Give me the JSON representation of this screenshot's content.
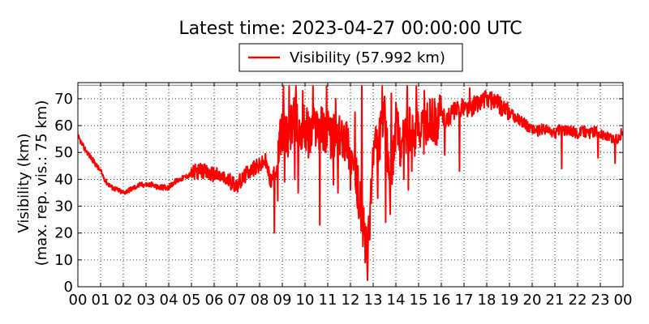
{
  "chart_data": {
    "type": "line",
    "title": "Latest time: 2023-04-27 00:00:00 UTC",
    "ylabel_line1": "Visibility (km)",
    "ylabel_line2": "(max. rep. vis.: 75 km)",
    "xlabel": "",
    "ylim": [
      0,
      76
    ],
    "xlim": [
      0,
      24
    ],
    "yticks": [
      0,
      10,
      20,
      30,
      40,
      50,
      60,
      70
    ],
    "xtick_labels": [
      "00",
      "01",
      "02",
      "03",
      "04",
      "05",
      "06",
      "07",
      "08",
      "09",
      "10",
      "11",
      "12",
      "13",
      "14",
      "15",
      "16",
      "17",
      "18",
      "19",
      "20",
      "21",
      "22",
      "23",
      "00"
    ],
    "max_reported_visibility": 75,
    "grid": true,
    "legend_position": "top-center",
    "series": [
      {
        "name": "Visibility (57.992 km)",
        "color": "#ff0000",
        "x": [
          0.0,
          0.25,
          0.5,
          0.75,
          1.0,
          1.25,
          1.5,
          1.75,
          2.0,
          2.25,
          2.5,
          2.75,
          3.0,
          3.25,
          3.5,
          3.75,
          4.0,
          4.25,
          4.5,
          4.75,
          5.0,
          5.25,
          5.5,
          5.75,
          6.0,
          6.25,
          6.5,
          6.75,
          7.0,
          7.25,
          7.5,
          7.75,
          8.0,
          8.25,
          8.5,
          8.75,
          9.0,
          9.25,
          9.5,
          9.75,
          10.0,
          10.25,
          10.5,
          10.75,
          11.0,
          11.25,
          11.5,
          11.75,
          12.0,
          12.25,
          12.5,
          12.75,
          13.0,
          13.25,
          13.5,
          13.75,
          14.0,
          14.25,
          14.5,
          14.75,
          15.0,
          15.25,
          15.5,
          15.75,
          16.0,
          16.25,
          16.5,
          16.75,
          17.0,
          17.25,
          17.5,
          17.75,
          18.0,
          18.25,
          18.5,
          18.75,
          19.0,
          19.25,
          19.5,
          19.75,
          20.0,
          20.25,
          20.5,
          20.75,
          21.0,
          21.25,
          21.5,
          21.75,
          22.0,
          22.25,
          22.5,
          22.75,
          23.0,
          23.25,
          23.5,
          23.75,
          24.0
        ],
        "y": [
          56,
          52,
          49,
          46,
          43,
          39,
          37,
          36,
          35,
          36,
          37,
          38,
          38,
          38,
          37,
          37,
          37,
          39,
          40,
          41,
          42,
          43,
          43,
          42,
          42,
          41,
          40,
          39,
          38,
          40,
          43,
          44,
          45,
          47,
          39,
          44,
          60,
          55,
          63,
          58,
          60,
          56,
          61,
          59,
          57,
          56,
          55,
          58,
          50,
          40,
          28,
          10,
          50,
          54,
          62,
          38,
          60,
          52,
          60,
          55,
          62,
          58,
          63,
          61,
          64,
          62,
          65,
          66,
          67,
          66,
          68,
          69,
          70,
          69,
          68,
          66,
          65,
          63,
          62,
          60,
          59,
          58,
          59,
          58,
          57,
          59,
          58,
          58,
          57,
          58,
          57,
          58,
          57,
          56,
          55,
          55,
          58
        ],
        "downspikes": [
          [
            8.65,
            20
          ],
          [
            8.8,
            32
          ],
          [
            9.1,
            39
          ],
          [
            9.55,
            40
          ],
          [
            9.7,
            35
          ],
          [
            10.15,
            48
          ],
          [
            10.35,
            35
          ],
          [
            10.65,
            23
          ],
          [
            11.25,
            38
          ],
          [
            11.45,
            35
          ],
          [
            11.75,
            47
          ],
          [
            12.0,
            36
          ],
          [
            12.15,
            46
          ],
          [
            12.35,
            28
          ],
          [
            12.55,
            15
          ],
          [
            12.65,
            9
          ],
          [
            12.9,
            40
          ],
          [
            13.2,
            33
          ],
          [
            13.55,
            24
          ],
          [
            13.75,
            27
          ],
          [
            14.35,
            40
          ],
          [
            14.55,
            36
          ],
          [
            14.7,
            43
          ],
          [
            14.9,
            39
          ],
          [
            16.15,
            49
          ],
          [
            16.8,
            43
          ],
          [
            21.3,
            44
          ],
          [
            22.9,
            48
          ],
          [
            23.65,
            46
          ]
        ],
        "upspikes": [
          [
            9.05,
            75
          ],
          [
            9.3,
            75
          ],
          [
            9.6,
            75
          ],
          [
            9.9,
            73
          ],
          [
            10.35,
            75
          ],
          [
            10.95,
            75
          ],
          [
            11.35,
            70
          ],
          [
            12.2,
            65
          ],
          [
            12.5,
            75
          ],
          [
            13.4,
            75
          ],
          [
            13.8,
            72
          ],
          [
            14.5,
            75
          ],
          [
            14.9,
            75
          ],
          [
            15.25,
            73
          ],
          [
            15.6,
            70
          ],
          [
            17.25,
            74
          ],
          [
            17.95,
            73
          ]
        ]
      }
    ]
  }
}
